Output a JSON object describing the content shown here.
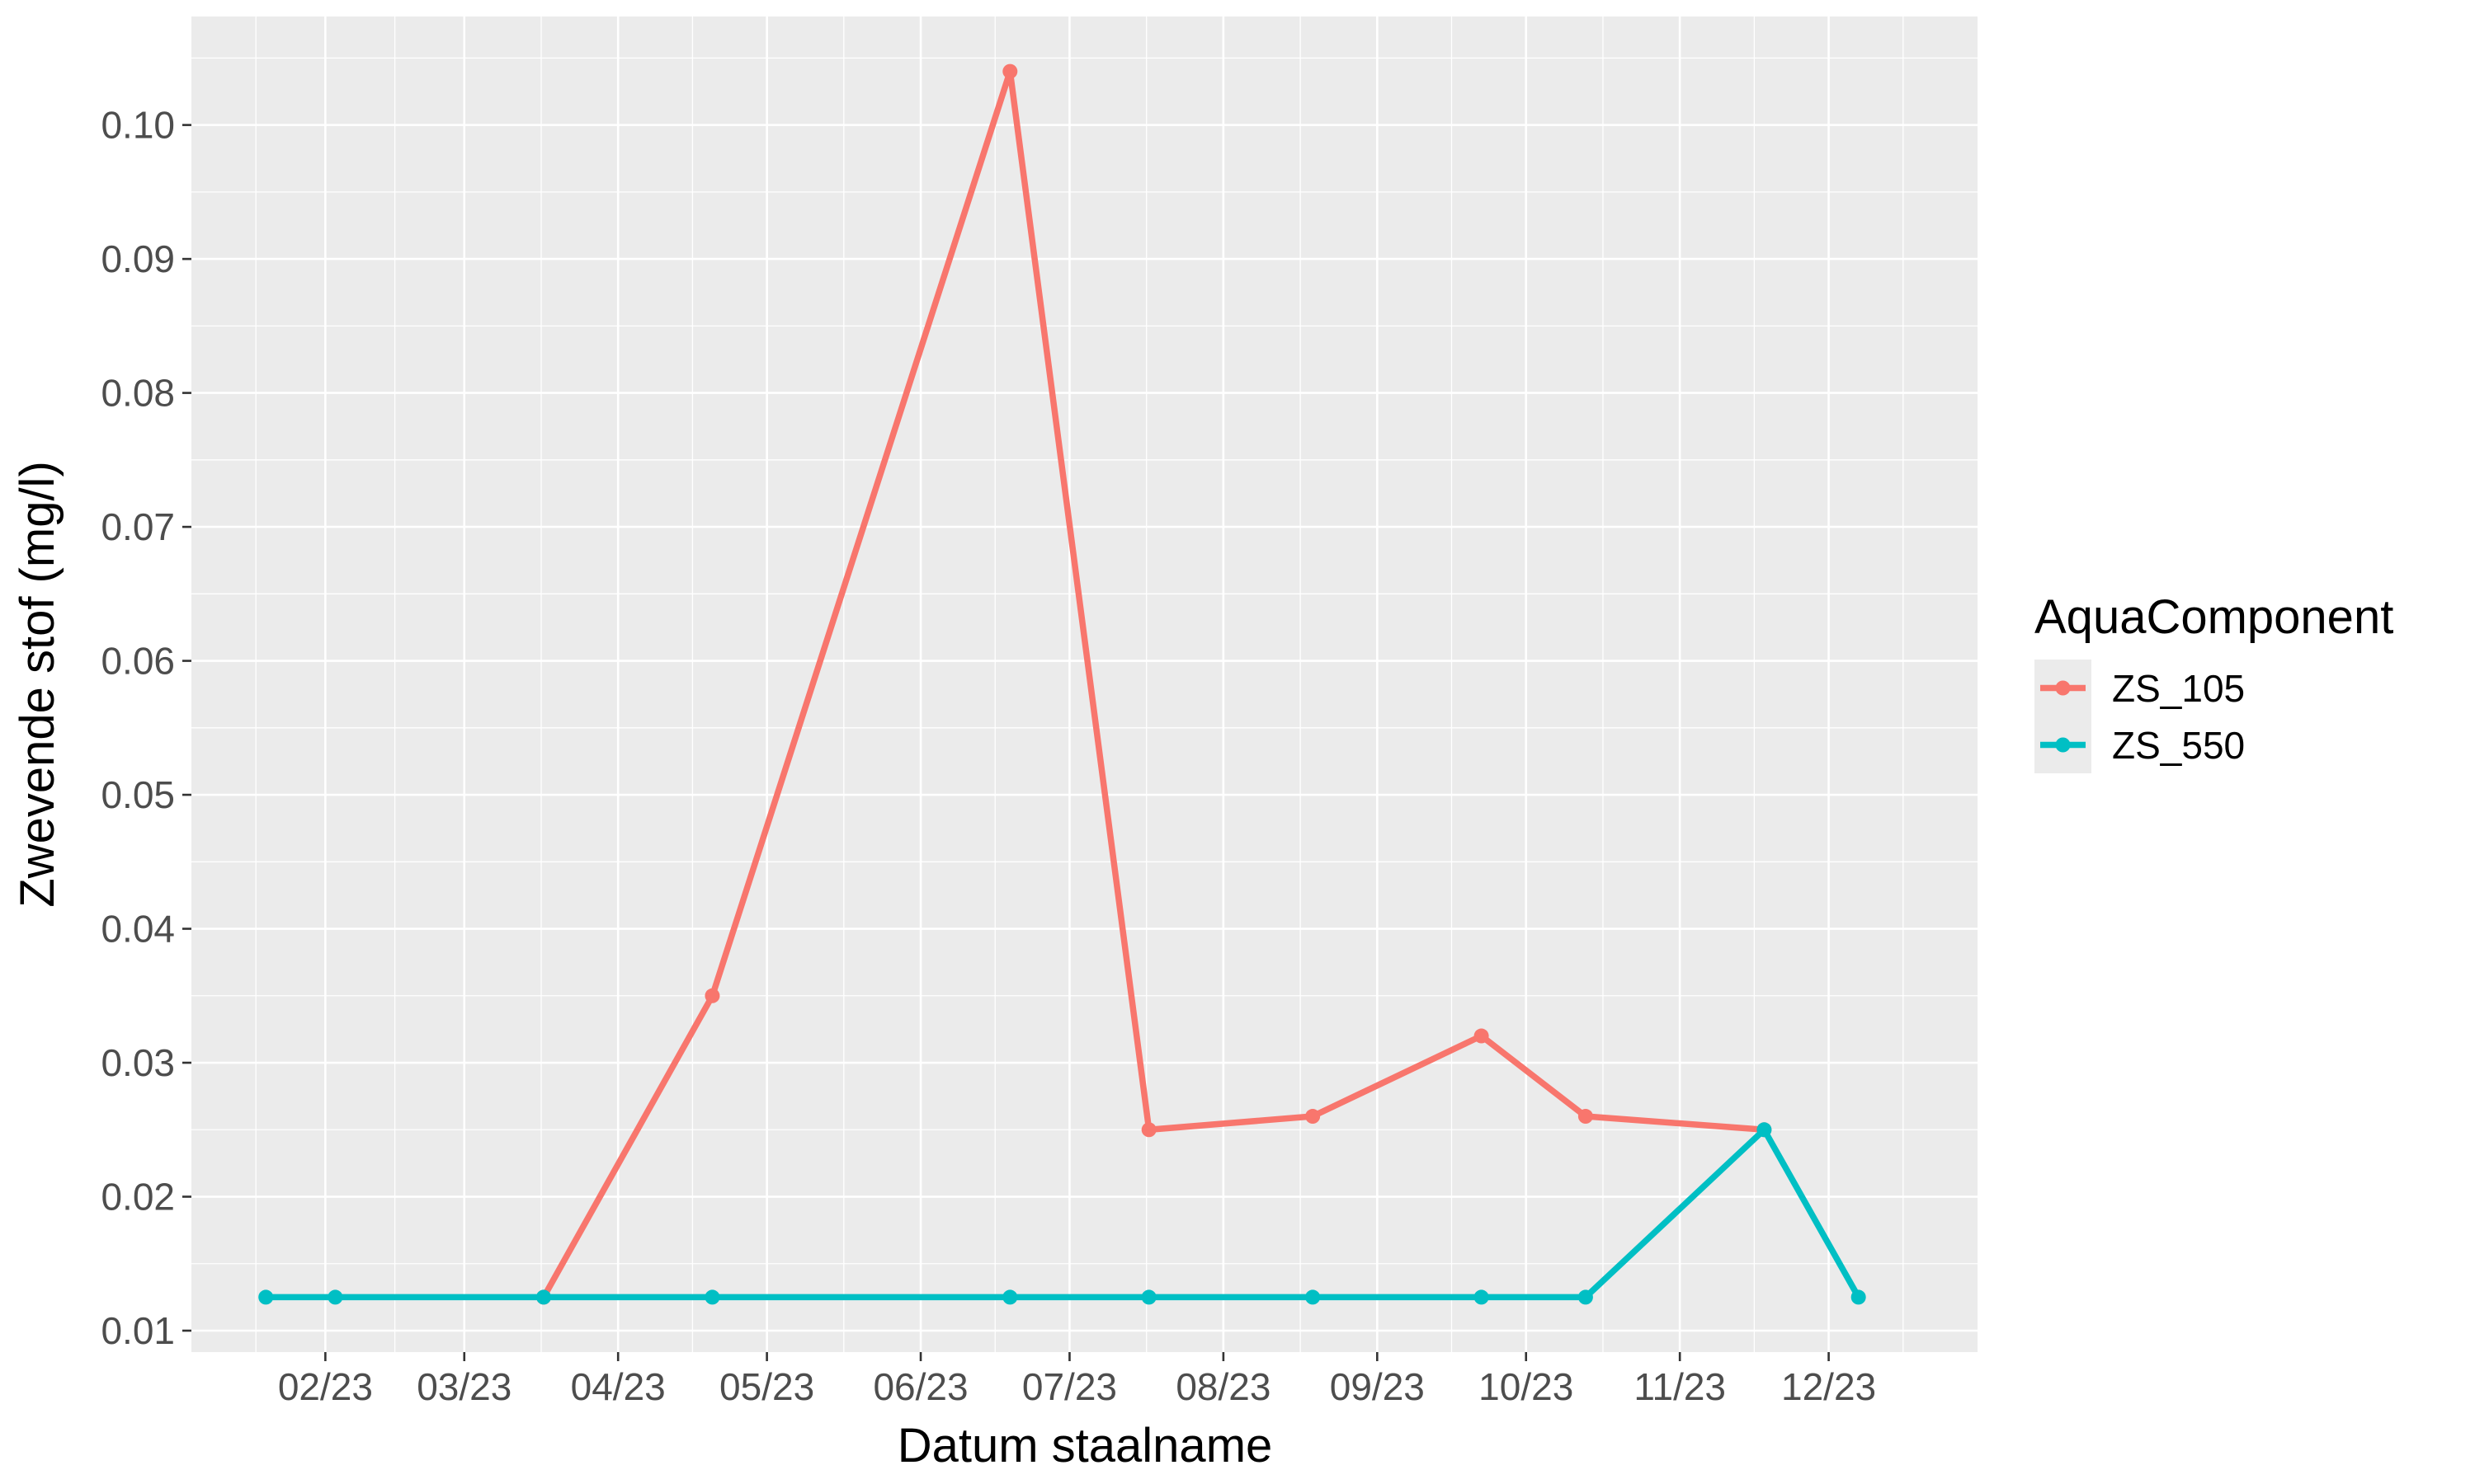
{
  "chart_data": {
    "type": "line",
    "xlabel": "Datum staalname",
    "ylabel": "Zwevende stof (mg/l)",
    "x_tick_labels": [
      {
        "date": "2023-02-01",
        "label": "02/23"
      },
      {
        "date": "2023-03-01",
        "label": "03/23"
      },
      {
        "date": "2023-04-01",
        "label": "04/23"
      },
      {
        "date": "2023-05-01",
        "label": "05/23"
      },
      {
        "date": "2023-06-01",
        "label": "06/23"
      },
      {
        "date": "2023-07-01",
        "label": "07/23"
      },
      {
        "date": "2023-08-01",
        "label": "08/23"
      },
      {
        "date": "2023-09-01",
        "label": "09/23"
      },
      {
        "date": "2023-10-01",
        "label": "10/23"
      },
      {
        "date": "2023-11-01",
        "label": "11/23"
      },
      {
        "date": "2023-12-01",
        "label": "12/23"
      }
    ],
    "y_ticks": [
      0.01,
      0.02,
      0.03,
      0.04,
      0.05,
      0.06,
      0.07,
      0.08,
      0.09,
      0.1
    ],
    "y_tick_labels": [
      "0.01",
      "0.02",
      "0.03",
      "0.04",
      "0.05",
      "0.06",
      "0.07",
      "0.08",
      "0.09",
      "0.10"
    ],
    "xlim": [
      "2023-01-05",
      "2023-12-31"
    ],
    "ylim": [
      0.0084,
      0.1081
    ],
    "grid": true,
    "legend": {
      "title": "AquaComponent",
      "position": "right"
    },
    "series": [
      {
        "name": "ZS_105",
        "color": "#F8766D",
        "points": [
          {
            "x": "2023-03-17",
            "y": 0.0125
          },
          {
            "x": "2023-04-20",
            "y": 0.035
          },
          {
            "x": "2023-06-19",
            "y": 0.104
          },
          {
            "x": "2023-07-17",
            "y": 0.025
          },
          {
            "x": "2023-08-19",
            "y": 0.026
          },
          {
            "x": "2023-09-22",
            "y": 0.032
          },
          {
            "x": "2023-10-13",
            "y": 0.026
          },
          {
            "x": "2023-11-18",
            "y": 0.025
          }
        ]
      },
      {
        "name": "ZS_550",
        "color": "#00BFC4",
        "points": [
          {
            "x": "2023-01-20",
            "y": 0.0125
          },
          {
            "x": "2023-02-03",
            "y": 0.0125
          },
          {
            "x": "2023-03-17",
            "y": 0.0125
          },
          {
            "x": "2023-04-20",
            "y": 0.0125
          },
          {
            "x": "2023-06-19",
            "y": 0.0125
          },
          {
            "x": "2023-07-17",
            "y": 0.0125
          },
          {
            "x": "2023-08-19",
            "y": 0.0125
          },
          {
            "x": "2023-09-22",
            "y": 0.0125
          },
          {
            "x": "2023-10-13",
            "y": 0.0125
          },
          {
            "x": "2023-11-18",
            "y": 0.025
          },
          {
            "x": "2023-12-07",
            "y": 0.0125
          }
        ]
      }
    ]
  }
}
